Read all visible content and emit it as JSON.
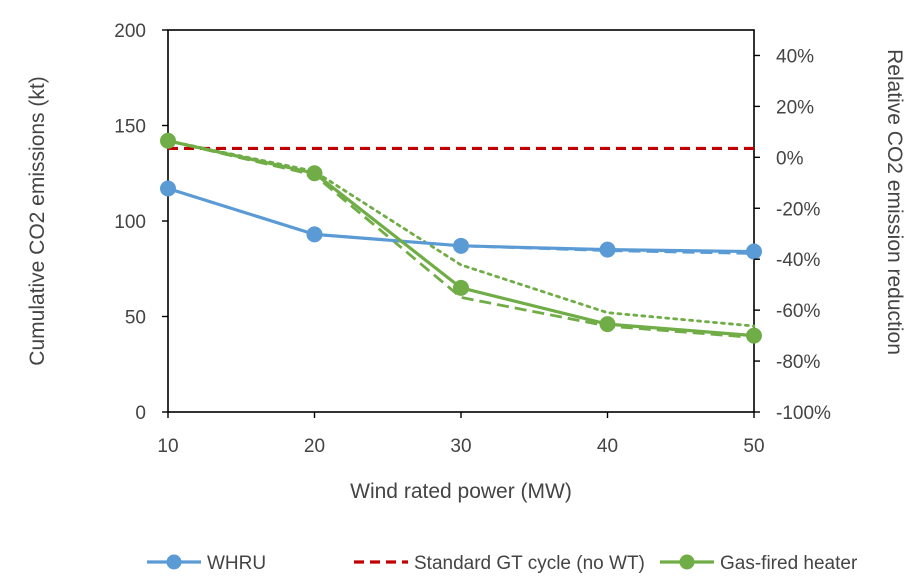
{
  "chart_data": {
    "type": "line",
    "x": [
      10,
      20,
      30,
      40,
      50
    ],
    "x_tick_labels": [
      "10",
      "20",
      "30",
      "40",
      "50"
    ],
    "xlabel": "Wind rated power (MW)",
    "xlim": [
      10,
      50
    ],
    "ylabel": "Cumulative CO2  emissions (kt)",
    "ylim": [
      0,
      200
    ],
    "y_ticks": [
      0,
      50,
      100,
      150,
      200
    ],
    "y_tick_labels": [
      "0",
      "50",
      "100",
      "150",
      "200"
    ],
    "y2label": "Relative CO2 emission reduction",
    "y2lim": [
      -100,
      50
    ],
    "y2_ticks": [
      -100,
      -80,
      -60,
      -40,
      -20,
      0,
      20,
      40
    ],
    "y2_tick_labels": [
      "-100%",
      "-80%",
      "-60%",
      "-40%",
      "-20%",
      "0%",
      "20%",
      "40%"
    ],
    "grid": false,
    "legend_position": "bottom",
    "series": [
      {
        "name": "WHRU",
        "axis": "left",
        "style": "solid",
        "marker": "circle",
        "color": "#5B9BD5",
        "in_legend": true,
        "values": [
          117,
          93,
          87,
          85,
          84
        ]
      },
      {
        "name": "",
        "axis": "left",
        "style": "dashed",
        "marker": "none",
        "color": "#5B9BD5",
        "in_legend": false,
        "values": [
          117,
          93,
          87,
          84.5,
          83
        ]
      },
      {
        "name": "Standard GT cycle (no WT)",
        "axis": "left",
        "style": "dashed",
        "marker": "none",
        "color": "#C00000",
        "in_legend": true,
        "values": [
          138,
          138,
          138,
          138,
          138
        ]
      },
      {
        "name": "Gas-fired heater",
        "axis": "left",
        "style": "solid",
        "marker": "circle",
        "color": "#70AD47",
        "in_legend": true,
        "values": [
          142,
          125,
          65,
          46,
          40
        ]
      },
      {
        "name": "",
        "axis": "left",
        "style": "dashed",
        "marker": "none",
        "color": "#70AD47",
        "in_legend": false,
        "values": [
          142,
          124,
          60,
          45,
          39
        ]
      },
      {
        "name": "",
        "axis": "left",
        "style": "dotted",
        "marker": "none",
        "color": "#70AD47",
        "in_legend": false,
        "values": [
          142,
          126,
          77,
          52,
          45
        ]
      }
    ]
  }
}
